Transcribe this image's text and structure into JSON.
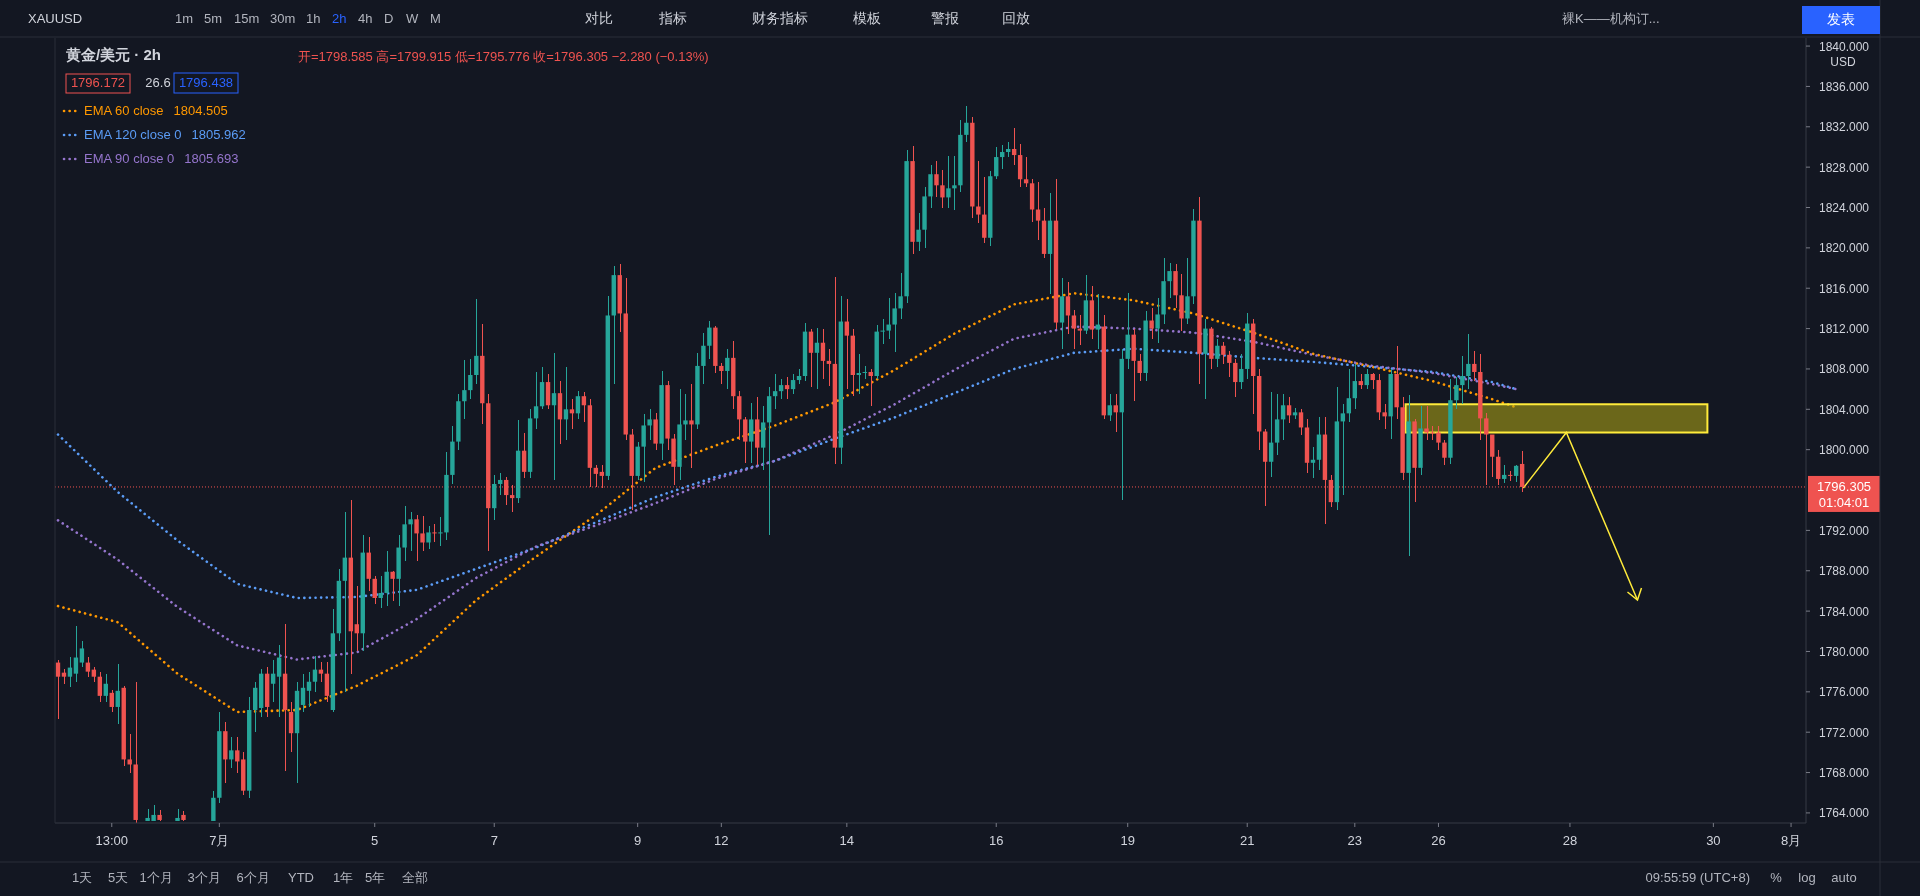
{
  "chart_data": {
    "type": "candlestick",
    "title": "黄金/美元 · 2h",
    "categories": [
      null,
      null,
      null,
      null,
      null,
      null,
      null,
      null,
      null,
      "13:00",
      null,
      null,
      null,
      null,
      null,
      null,
      null,
      null,
      null,
      null,
      null,
      null,
      null,
      null,
      null,
      null,
      null,
      "7月",
      null,
      null,
      null,
      null,
      null,
      null,
      null,
      null,
      null,
      null,
      null,
      null,
      null,
      null,
      null,
      null,
      null,
      null,
      null,
      null,
      null,
      null,
      null,
      null,
      null,
      "5",
      null,
      null,
      null,
      null,
      null,
      null,
      null,
      null,
      null,
      null,
      null,
      null,
      null,
      null,
      null,
      null,
      null,
      null,
      null,
      "7",
      null,
      null,
      null,
      null,
      null,
      null,
      null,
      null,
      null,
      null,
      null,
      null,
      null,
      null,
      null,
      null,
      null,
      null,
      null,
      null,
      null,
      null,
      null,
      "9",
      null,
      null,
      null,
      null,
      null,
      null,
      null,
      null,
      null,
      null,
      null,
      null,
      null,
      "12",
      null,
      null,
      null,
      null,
      null,
      null,
      null,
      null,
      null,
      null,
      null,
      null,
      null,
      null,
      null,
      null,
      null,
      null,
      null,
      null,
      "14",
      null,
      null,
      null,
      null,
      null,
      null,
      null,
      null,
      null,
      null,
      null,
      null,
      null,
      null,
      null,
      null,
      null,
      null,
      null,
      null,
      null,
      null,
      null,
      null,
      "16",
      null,
      null,
      null,
      null,
      null,
      null,
      null,
      null,
      null,
      null,
      null,
      null,
      null,
      null,
      null,
      null,
      null,
      null,
      null,
      null,
      null,
      "19",
      null,
      null,
      null,
      null,
      null,
      null,
      null,
      null,
      null,
      null,
      null,
      null,
      null,
      null,
      null,
      null,
      null,
      null,
      null,
      "21",
      null,
      null,
      null,
      null,
      null,
      null,
      null,
      null,
      null,
      null,
      null,
      null,
      null,
      null,
      null,
      null,
      null,
      "23",
      null,
      null,
      null,
      null,
      null,
      null,
      null,
      null,
      null,
      null,
      null,
      null,
      null,
      "26",
      null,
      null,
      null,
      null,
      null,
      null,
      null,
      null,
      null,
      null,
      null,
      null,
      null,
      null,
      null,
      null,
      null,
      null,
      null,
      null,
      null,
      "28",
      null,
      null,
      null,
      null,
      null,
      null,
      null,
      null,
      null,
      null,
      null,
      null,
      null,
      null,
      null,
      null,
      null,
      null,
      null,
      null,
      null,
      null,
      null,
      "30",
      null,
      null,
      null,
      null,
      null,
      null,
      null,
      null,
      null,
      null,
      null,
      null,
      "8月",
      null,
      null
    ],
    "ohlc": [
      [
        1778.9,
        1779.2,
        1773.3,
        1777.5
      ],
      [
        1777.9,
        1778.3,
        1776.8,
        1777.5
      ],
      [
        1777.5,
        1779.5,
        1776.5,
        1778.4
      ],
      [
        1777.8,
        1782.5,
        1777,
        1779.4
      ],
      [
        1778.9,
        1781,
        1778.5,
        1780.3
      ],
      [
        1778.9,
        1779.5,
        1777.5,
        1778
      ],
      [
        1778.2,
        1778.5,
        1777,
        1777.5
      ],
      [
        1777.5,
        1778,
        1775,
        1775.6
      ],
      [
        1775.6,
        1777.8,
        1775,
        1776.8
      ],
      [
        1775.9,
        1776.2,
        1774,
        1774.5
      ],
      [
        1774.5,
        1778.8,
        1772.8,
        1776.1
      ],
      [
        1776.4,
        1776.6,
        1768.6,
        1769.3
      ],
      [
        1769.3,
        1771.8,
        1768,
        1768.8
      ],
      [
        1768.8,
        1777,
        1763,
        1763.3
      ],
      null,
      [
        1763.2,
        1764.4,
        1763.2,
        1763.5
      ],
      [
        1763.2,
        1764.8,
        1763.2,
        1763.8
      ],
      [
        1763.8,
        1764.3,
        1763.2,
        1763.3
      ],
      null,
      null,
      [
        1763.2,
        1764.4,
        1763.2,
        1763.5
      ],
      [
        1763.8,
        1764.2,
        1763.2,
        1763.3
      ],
      null,
      null,
      null,
      null,
      [
        1763.2,
        1766.2,
        1763.2,
        1765.5
      ],
      [
        1765.5,
        1774,
        1765,
        1772.1
      ],
      [
        1772.1,
        1773,
        1767,
        1769.3
      ],
      [
        1769.3,
        1771.5,
        1768.5,
        1770.2
      ],
      [
        1770.2,
        1771.5,
        1768,
        1769.1
      ],
      [
        1769.3,
        1770,
        1765.8,
        1766.2
      ],
      [
        1766.2,
        1775.5,
        1765.5,
        1774.2
      ],
      [
        1774.2,
        1777,
        1772,
        1776.4
      ],
      [
        1774.4,
        1778.3,
        1773.5,
        1777.8
      ],
      [
        1777.8,
        1778.5,
        1773.5,
        1774.5
      ],
      [
        1776.8,
        1779.2,
        1775,
        1777.8
      ],
      [
        1777.5,
        1780.6,
        1773.5,
        1779.4
      ],
      [
        1777.8,
        1782.7,
        1768.2,
        1774.2
      ],
      [
        1774,
        1775,
        1770,
        1771.9
      ],
      [
        1771.9,
        1777,
        1767,
        1776.1
      ],
      [
        1774.7,
        1777.8,
        1774,
        1776.4
      ],
      [
        1776.1,
        1778,
        1774.5,
        1777
      ],
      [
        1777,
        1779.6,
        1776,
        1778.2
      ],
      [
        1778.2,
        1779,
        1777,
        1777.8
      ],
      [
        1777.8,
        1779,
        1775,
        1775.6
      ],
      [
        1774.2,
        1784.2,
        1774,
        1781.8
      ],
      [
        1781.8,
        1788.2,
        1781,
        1787
      ],
      [
        1787,
        1793.8,
        1776,
        1789.3
      ],
      [
        1789.3,
        1795,
        1777.8,
        1782
      ],
      [
        1782.7,
        1786.5,
        1780,
        1781.8
      ],
      [
        1781.8,
        1791.5,
        1780,
        1789.8
      ],
      [
        1789.8,
        1791.3,
        1786,
        1787.2
      ],
      [
        1787.2,
        1787.5,
        1784.7,
        1785.3
      ],
      [
        1785.3,
        1787.5,
        1784.3,
        1785.8
      ],
      [
        1785.8,
        1790,
        1784.5,
        1787.9
      ],
      [
        1787.9,
        1788,
        1785,
        1787.2
      ],
      [
        1787.2,
        1791.5,
        1784.5,
        1790.3
      ],
      [
        1790.3,
        1794.4,
        1789,
        1792.6
      ],
      [
        1792.6,
        1793.8,
        1790,
        1793.1
      ],
      [
        1793.1,
        1793.5,
        1789,
        1791.7
      ],
      [
        1791.7,
        1793.4,
        1790,
        1790.8
      ],
      [
        1790.8,
        1792.4,
        1790.2,
        1791.8
      ],
      [
        1791.8,
        1792.6,
        1790.8,
        1791.7
      ],
      [
        1791.7,
        1793.3,
        1790.5,
        1791.8
      ],
      [
        1791.8,
        1799.8,
        1791,
        1797.5
      ],
      [
        1797.5,
        1802.3,
        1796.6,
        1800.8
      ],
      [
        1800.8,
        1805.5,
        1800,
        1804.8
      ],
      [
        1804.8,
        1808.9,
        1803,
        1805.9
      ],
      [
        1805.9,
        1809,
        1805,
        1807.4
      ],
      [
        1807.4,
        1814.9,
        1806.5,
        1809.3
      ],
      [
        1809.3,
        1812.5,
        1802.5,
        1804.6
      ],
      [
        1804.6,
        1805.5,
        1790,
        1794.2
      ],
      [
        1794.2,
        1797.5,
        1793,
        1796.6
      ],
      [
        1796.6,
        1797.7,
        1795.5,
        1797
      ],
      [
        1797,
        1797.3,
        1794.5,
        1795.5
      ],
      [
        1795.5,
        1796.5,
        1793.8,
        1795.2
      ],
      [
        1795.2,
        1802.9,
        1794.7,
        1799.9
      ],
      [
        1799.9,
        1801.7,
        1797.2,
        1797.8
      ],
      [
        1797.8,
        1804,
        1797.2,
        1803.1
      ],
      [
        1803.1,
        1807.7,
        1802,
        1804.3
      ],
      [
        1804.3,
        1808.2,
        1804,
        1806.7
      ],
      [
        1806.7,
        1807.5,
        1804,
        1804.4
      ],
      [
        1804.4,
        1809.6,
        1797,
        1805.6
      ],
      [
        1805.6,
        1806.8,
        1800.6,
        1803
      ],
      [
        1803,
        1808.2,
        1801,
        1804
      ],
      [
        1804,
        1805,
        1802,
        1803.6
      ],
      [
        1803.6,
        1805.8,
        1803,
        1805.3
      ],
      [
        1805.3,
        1805.7,
        1802.7,
        1804.4
      ],
      [
        1804.4,
        1805,
        1796.3,
        1798.2
      ],
      [
        1798.2,
        1798.5,
        1796.3,
        1797.6
      ],
      [
        1797.8,
        1798.5,
        1796.2,
        1797.4
      ],
      [
        1797.4,
        1815.2,
        1797,
        1813.3
      ],
      [
        1813.3,
        1818.2,
        1806.5,
        1817.3
      ],
      [
        1817.3,
        1818.4,
        1811.7,
        1813.5
      ],
      [
        1813.5,
        1817,
        1801,
        1801.5
      ],
      [
        1801.5,
        1802,
        1794,
        1797.4
      ],
      [
        1797.4,
        1800.8,
        1797,
        1800.3
      ],
      [
        1800.3,
        1803.5,
        1796.8,
        1802.4
      ],
      [
        1802.4,
        1804,
        1801,
        1803
      ],
      [
        1803,
        1803.6,
        1800,
        1800.6
      ],
      [
        1800.6,
        1807.8,
        1799,
        1806.4
      ],
      [
        1806.4,
        1806.8,
        1800,
        1801.1
      ],
      [
        1801.1,
        1801.6,
        1796.5,
        1798.3
      ],
      [
        1798.3,
        1806,
        1797,
        1802.5
      ],
      [
        1802.5,
        1805.5,
        1801,
        1802.9
      ],
      [
        1802.9,
        1806.5,
        1798.2,
        1802.5
      ],
      [
        1802.5,
        1809.6,
        1802,
        1808.3
      ],
      [
        1808.3,
        1811.6,
        1806.5,
        1810.3
      ],
      [
        1810.3,
        1812.8,
        1809,
        1812.1
      ],
      [
        1812.1,
        1812.3,
        1807.6,
        1808.3
      ],
      [
        1808.3,
        1808.6,
        1806.5,
        1807.8
      ],
      [
        1807.8,
        1810,
        1806,
        1809.1
      ],
      [
        1809.1,
        1810.8,
        1804,
        1805.3
      ],
      [
        1805.3,
        1805.8,
        1801,
        1803
      ],
      [
        1803,
        1803.2,
        1798.7,
        1800.8
      ],
      [
        1800.8,
        1804.6,
        1798.7,
        1803
      ],
      [
        1803,
        1805.2,
        1798.5,
        1800.2
      ],
      [
        1800.2,
        1804.3,
        1798,
        1802.7
      ],
      [
        1802.7,
        1806.2,
        1791.5,
        1805.3
      ],
      [
        1805.3,
        1807.5,
        1804,
        1805.8
      ],
      [
        1805.8,
        1807,
        1805,
        1806.4
      ],
      [
        1806.4,
        1807.2,
        1805,
        1806
      ],
      [
        1806,
        1807.5,
        1805.5,
        1806.9
      ],
      [
        1806.9,
        1808,
        1806.5,
        1807.3
      ],
      [
        1807.3,
        1812.6,
        1806.8,
        1811.7
      ],
      [
        1811.7,
        1812,
        1806.2,
        1809.6
      ],
      [
        1809.6,
        1812.1,
        1806,
        1810.6
      ],
      [
        1810.6,
        1812,
        1807,
        1808.8
      ],
      [
        1808.8,
        1810,
        1806.3,
        1808.5
      ],
      [
        1808.5,
        1817.1,
        1798.6,
        1800.2
      ],
      [
        1800.2,
        1815.2,
        1798.6,
        1812.7
      ],
      [
        1812.7,
        1814.9,
        1806,
        1811.3
      ],
      [
        1811.3,
        1812,
        1805.3,
        1807.4
      ],
      [
        1807.4,
        1809.5,
        1805.5,
        1807.6
      ],
      [
        1807.6,
        1808.3,
        1807,
        1807.7
      ],
      [
        1807.7,
        1808,
        1804.3,
        1807.3
      ],
      [
        1807.3,
        1812.4,
        1807,
        1811.7
      ],
      [
        1811.7,
        1813,
        1810.5,
        1811.8
      ],
      [
        1811.8,
        1815,
        1811,
        1812.4
      ],
      [
        1812.4,
        1815.5,
        1809.7,
        1814
      ],
      [
        1814,
        1817.5,
        1813,
        1815.2
      ],
      [
        1815.2,
        1829.7,
        1814.5,
        1828.6
      ],
      [
        1828.6,
        1830.1,
        1819.4,
        1820.6
      ],
      [
        1820.6,
        1823.5,
        1819.7,
        1821.8
      ],
      [
        1821.8,
        1826,
        1820,
        1825.1
      ],
      [
        1825.1,
        1828.2,
        1824,
        1827.3
      ],
      [
        1827.3,
        1828.6,
        1825,
        1826.2
      ],
      [
        1826.2,
        1827.7,
        1824,
        1825
      ],
      [
        1825,
        1829.1,
        1824,
        1825.9
      ],
      [
        1825.9,
        1829.1,
        1823.8,
        1826.2
      ],
      [
        1826.2,
        1832.7,
        1825.5,
        1831.2
      ],
      [
        1831.2,
        1834.1,
        1830.5,
        1832.4
      ],
      [
        1832.4,
        1833,
        1823,
        1824.1
      ],
      [
        1824.1,
        1828.6,
        1822.5,
        1823.3
      ],
      [
        1823.3,
        1827,
        1820.5,
        1821
      ],
      [
        1821,
        1827.6,
        1820.2,
        1827.1
      ],
      [
        1827.1,
        1830,
        1826.8,
        1829
      ],
      [
        1829,
        1830.2,
        1827.8,
        1829.5
      ],
      [
        1829.5,
        1830.5,
        1829,
        1829.8
      ],
      [
        1829.8,
        1831.9,
        1828.2,
        1829.2
      ],
      [
        1829.2,
        1830.3,
        1826,
        1826.8
      ],
      [
        1826.8,
        1829,
        1826,
        1826.4
      ],
      [
        1826.4,
        1826.8,
        1822.6,
        1823.8
      ],
      [
        1823.8,
        1826.5,
        1820.8,
        1822.7
      ],
      [
        1822.7,
        1824,
        1819,
        1819.4
      ],
      [
        1819.4,
        1825.4,
        1815.4,
        1822.7
      ],
      [
        1822.7,
        1826.8,
        1812,
        1812.6
      ],
      [
        1812.6,
        1817,
        1810,
        1815.2
      ],
      [
        1815.2,
        1816.6,
        1811.5,
        1813.3
      ],
      [
        1813.3,
        1813.8,
        1810,
        1812
      ],
      [
        1812,
        1813.3,
        1810.4,
        1811.8
      ],
      [
        1811.8,
        1817.3,
        1811.5,
        1814.8
      ],
      [
        1814.8,
        1816.2,
        1811,
        1811.9
      ],
      [
        1811.9,
        1815.4,
        1810,
        1812.4
      ],
      [
        1812.2,
        1813.3,
        1803,
        1803.4
      ],
      [
        1803.4,
        1805.5,
        1802.8,
        1804.4
      ],
      [
        1804.4,
        1805.5,
        1801.8,
        1803.7
      ],
      [
        1803.7,
        1810,
        1795,
        1809
      ],
      [
        1809,
        1815.5,
        1808,
        1811.4
      ],
      [
        1811.4,
        1812,
        1804.8,
        1808.8
      ],
      [
        1808.8,
        1809.5,
        1806.8,
        1807.6
      ],
      [
        1807.6,
        1813.7,
        1806.8,
        1812.8
      ],
      [
        1812.8,
        1814,
        1811,
        1812
      ],
      [
        1812,
        1815,
        1810.6,
        1813.4
      ],
      [
        1813.4,
        1819,
        1812.5,
        1816.7
      ],
      [
        1816.7,
        1818.5,
        1815,
        1817.7
      ],
      [
        1817.7,
        1818.4,
        1814,
        1815.3
      ],
      [
        1815.3,
        1817.4,
        1811.8,
        1813
      ],
      [
        1813,
        1819,
        1812.5,
        1815.2
      ],
      [
        1815.2,
        1823.9,
        1814.4,
        1822.7
      ],
      [
        1822.7,
        1825,
        1806.5,
        1809.5
      ],
      [
        1809.5,
        1813,
        1805,
        1812
      ],
      [
        1812,
        1812.2,
        1808,
        1809
      ],
      [
        1809,
        1811,
        1808.2,
        1810.3
      ],
      [
        1810.3,
        1810.7,
        1808.5,
        1809.4
      ],
      [
        1809.4,
        1809.8,
        1807.2,
        1808.6
      ],
      [
        1808.6,
        1809,
        1805.2,
        1806.7
      ],
      [
        1806.7,
        1809.5,
        1806,
        1808
      ],
      [
        1808,
        1813.5,
        1807,
        1812.5
      ],
      [
        1812.5,
        1813,
        1803.5,
        1807.3
      ],
      [
        1807.3,
        1808,
        1800,
        1801.8
      ],
      [
        1801.8,
        1802,
        1794.4,
        1798.8
      ],
      [
        1798.8,
        1805.7,
        1797.3,
        1800.7
      ],
      [
        1800.7,
        1805.5,
        1799.5,
        1803
      ],
      [
        1803,
        1805.5,
        1801,
        1804.4
      ],
      [
        1804.4,
        1805.2,
        1802.6,
        1803.4
      ],
      [
        1803.4,
        1804.1,
        1803,
        1803.7
      ],
      [
        1803.7,
        1804,
        1801.5,
        1802.2
      ],
      [
        1802.2,
        1803,
        1797.7,
        1798.7
      ],
      [
        1798.7,
        1800.3,
        1797.2,
        1799
      ],
      [
        1799,
        1803.2,
        1798,
        1801.5
      ],
      [
        1801.5,
        1803.2,
        1792.6,
        1797
      ],
      [
        1797,
        1797.5,
        1794.3,
        1794.8
      ],
      [
        1794.8,
        1806.2,
        1794,
        1802.8
      ],
      [
        1802.8,
        1804.5,
        1795.5,
        1803.6
      ],
      [
        1803.6,
        1808,
        1802.7,
        1805.1
      ],
      [
        1805.1,
        1808.5,
        1804,
        1806.8
      ],
      [
        1806.8,
        1807.5,
        1806,
        1806.4
      ],
      [
        1806.4,
        1808,
        1806,
        1807.5
      ],
      [
        1807.5,
        1807.6,
        1806,
        1806.9
      ],
      [
        1806.9,
        1807.5,
        1802.9,
        1803.7
      ],
      [
        1803.7,
        1804.5,
        1802,
        1803.3
      ],
      [
        1803.3,
        1808,
        1801.1,
        1807.5
      ],
      [
        1807.5,
        1810.3,
        1803,
        1804.2
      ],
      [
        1804.2,
        1805.2,
        1797,
        1797.7
      ],
      [
        1797.7,
        1805.4,
        1789.5,
        1802.8
      ],
      [
        1802.8,
        1803,
        1794.8,
        1798.2
      ],
      [
        1798.2,
        1804.3,
        1797.5,
        1802.1
      ],
      [
        1802.1,
        1804.3,
        1801,
        1801.7
      ],
      [
        1801.7,
        1802.3,
        1801,
        1801.6
      ],
      [
        1801.7,
        1802.3,
        1800,
        1800.7
      ],
      [
        1800.7,
        1801,
        1798.5,
        1799.2
      ],
      [
        1799.2,
        1807,
        1798.6,
        1804.9
      ],
      [
        1804.9,
        1807.2,
        1804,
        1806.4
      ],
      [
        1806.4,
        1809.3,
        1804.5,
        1807.3
      ],
      [
        1807.3,
        1811.5,
        1806,
        1808.5
      ],
      [
        1808.5,
        1809.8,
        1806.8,
        1807.7
      ],
      [
        1807.7,
        1809.5,
        1801,
        1803.1
      ],
      [
        1803.1,
        1803.6,
        1796.5,
        1801.5
      ],
      [
        1801.5,
        1801.5,
        1797.3,
        1799.3
      ],
      [
        1799.3,
        1800,
        1796.5,
        1797.1
      ],
      [
        1797.1,
        1798.5,
        1796.7,
        1797.5
      ],
      [
        1797.5,
        1797.9,
        1796.9,
        1797.4
      ],
      [
        1797.4,
        1798.5,
        1796.8,
        1798.4
      ],
      [
        1798.585,
        1799.915,
        1795.776,
        1796.305
      ],
      null,
      null,
      null,
      null,
      null,
      null,
      null,
      null,
      null,
      null,
      null,
      null,
      null,
      null,
      null,
      null,
      null,
      null,
      null,
      null,
      null,
      null,
      null,
      null,
      null,
      null,
      null,
      null,
      null,
      null,
      null,
      null,
      null,
      null,
      null,
      null,
      null,
      null,
      null,
      null,
      null,
      null,
      null,
      null,
      null,
      null,
      null
    ],
    "series": [
      {
        "name": "EMA 60 close",
        "type": "line",
        "color": "#ff9800",
        "line_style": "dotted",
        "values": [
          1784.5,
          null,
          null,
          null,
          null,
          null,
          null,
          null,
          null,
          null,
          1782.9,
          null,
          null,
          null,
          null,
          null,
          null,
          null,
          null,
          null,
          1777.8,
          null,
          null,
          null,
          null,
          null,
          null,
          null,
          null,
          null,
          1774,
          null,
          null,
          null,
          null,
          null,
          null,
          null,
          null,
          null,
          1774.2,
          null,
          null,
          null,
          null,
          null,
          null,
          null,
          null,
          null,
          1776.6,
          null,
          null,
          null,
          null,
          null,
          null,
          null,
          null,
          null,
          1779.6,
          null,
          null,
          null,
          null,
          null,
          null,
          null,
          null,
          null,
          1785.1,
          null,
          null,
          null,
          null,
          null,
          null,
          null,
          null,
          null,
          1789.4,
          null,
          null,
          null,
          null,
          null,
          null,
          null,
          null,
          null,
          1793.5,
          null,
          null,
          null,
          null,
          null,
          null,
          null,
          null,
          null,
          1798.2,
          null,
          null,
          null,
          null,
          null,
          null,
          null,
          null,
          null,
          1800.4,
          null,
          null,
          null,
          null,
          null,
          null,
          null,
          null,
          null,
          1802.4,
          null,
          null,
          null,
          null,
          null,
          null,
          null,
          null,
          null,
          1804.7,
          null,
          null,
          null,
          null,
          null,
          null,
          null,
          null,
          null,
          1807.9,
          null,
          null,
          null,
          null,
          null,
          null,
          null,
          null,
          null,
          1811.5,
          null,
          null,
          null,
          null,
          null,
          null,
          null,
          null,
          null,
          1814.4,
          null,
          null,
          null,
          null,
          null,
          null,
          null,
          null,
          null,
          1815.5,
          null,
          null,
          null,
          null,
          null,
          null,
          null,
          null,
          null,
          1814.8,
          null,
          null,
          null,
          null,
          null,
          null,
          null,
          null,
          null,
          1813.5,
          null,
          null,
          null,
          null,
          null,
          null,
          null,
          null,
          null,
          1811.6,
          null,
          null,
          null,
          null,
          null,
          null,
          null,
          null,
          null,
          1809.5,
          null,
          null,
          null,
          null,
          null,
          null,
          null,
          null,
          null,
          1808.2,
          null,
          null,
          null,
          null,
          null,
          null,
          null,
          null,
          null,
          1806.8,
          null,
          null,
          null,
          null,
          null,
          null,
          null,
          null,
          null,
          1805,
          null,
          null,
          null,
          1804.2,
          null,
          null,
          null,
          null,
          null,
          null,
          null,
          null,
          null,
          null,
          null,
          null,
          null,
          null,
          null,
          null,
          null,
          null,
          null,
          null,
          null,
          null,
          null,
          null,
          null,
          null,
          null,
          null,
          null,
          null,
          null,
          null,
          null,
          null,
          null,
          null,
          null,
          null,
          null,
          null,
          null,
          null,
          null,
          null,
          null,
          null,
          null,
          null
        ]
      },
      {
        "name": "EMA 120 close 0",
        "type": "line",
        "color": "#5b9cf6",
        "line_style": "dotted",
        "values": [
          1801.5,
          null,
          null,
          null,
          null,
          null,
          null,
          null,
          null,
          null,
          1795.8,
          null,
          null,
          null,
          null,
          null,
          null,
          null,
          null,
          null,
          1791,
          null,
          null,
          null,
          null,
          null,
          null,
          null,
          null,
          null,
          1786.7,
          null,
          null,
          null,
          null,
          null,
          null,
          null,
          null,
          null,
          1785.3,
          null,
          null,
          null,
          null,
          null,
          null,
          null,
          null,
          null,
          1785.4,
          null,
          null,
          null,
          null,
          null,
          null,
          null,
          null,
          null,
          1786.1,
          null,
          null,
          null,
          null,
          null,
          null,
          null,
          null,
          null,
          1788.2,
          null,
          null,
          null,
          null,
          null,
          null,
          null,
          null,
          null,
          1790.3,
          null,
          null,
          null,
          null,
          null,
          null,
          null,
          null,
          null,
          1792.8,
          null,
          null,
          null,
          null,
          null,
          null,
          null,
          null,
          null,
          1795.3,
          null,
          null,
          null,
          null,
          null,
          null,
          null,
          null,
          null,
          1797.3,
          null,
          null,
          null,
          null,
          null,
          null,
          null,
          null,
          null,
          1798.9,
          null,
          null,
          null,
          null,
          null,
          null,
          null,
          null,
          null,
          1801.1,
          null,
          null,
          null,
          null,
          null,
          null,
          null,
          null,
          null,
          1803.2,
          null,
          null,
          null,
          null,
          null,
          null,
          null,
          null,
          null,
          1805.6,
          null,
          null,
          null,
          null,
          null,
          null,
          null,
          null,
          null,
          1808,
          null,
          null,
          null,
          null,
          null,
          null,
          null,
          null,
          null,
          1809.6,
          null,
          null,
          null,
          null,
          null,
          null,
          null,
          null,
          null,
          1810,
          null,
          null,
          null,
          null,
          null,
          null,
          null,
          null,
          null,
          1809.6,
          null,
          null,
          null,
          null,
          null,
          null,
          null,
          null,
          null,
          1809.1,
          null,
          null,
          null,
          null,
          null,
          null,
          null,
          null,
          null,
          1808.7,
          null,
          null,
          null,
          null,
          null,
          null,
          null,
          null,
          null,
          1808.2,
          null,
          null,
          null,
          null,
          null,
          null,
          null,
          null,
          null,
          1807.7,
          null,
          null,
          null,
          null,
          null,
          null,
          null,
          null,
          null,
          1806.7,
          null,
          null,
          null,
          1806,
          null,
          null,
          null,
          null,
          null,
          null,
          null,
          null,
          null,
          null,
          null,
          null,
          null,
          null,
          null,
          null,
          null,
          null,
          null,
          null,
          null,
          null,
          null,
          null,
          null,
          null,
          null,
          null,
          null,
          null,
          null,
          null,
          null,
          null,
          null,
          null,
          null,
          null,
          null,
          null,
          null,
          null,
          null,
          null,
          null,
          null,
          null,
          null
        ]
      },
      {
        "name": "EMA 90 close 0",
        "type": "line",
        "color": "#9575cd",
        "line_style": "dotted",
        "values": [
          1793,
          null,
          null,
          null,
          null,
          null,
          null,
          null,
          null,
          null,
          1789.1,
          null,
          null,
          null,
          null,
          null,
          null,
          null,
          null,
          null,
          1784.4,
          null,
          null,
          null,
          null,
          null,
          null,
          null,
          null,
          null,
          1780.6,
          null,
          null,
          null,
          null,
          null,
          null,
          null,
          null,
          null,
          1779.2,
          null,
          null,
          null,
          null,
          null,
          null,
          null,
          null,
          null,
          1779.9,
          null,
          null,
          null,
          null,
          null,
          null,
          null,
          null,
          null,
          1783.2,
          null,
          null,
          null,
          null,
          null,
          null,
          null,
          null,
          null,
          1787.3,
          null,
          null,
          null,
          null,
          null,
          null,
          null,
          null,
          null,
          1790.4,
          null,
          null,
          null,
          null,
          null,
          null,
          null,
          null,
          null,
          1792.5,
          null,
          null,
          null,
          null,
          null,
          null,
          null,
          null,
          null,
          1794.7,
          null,
          null,
          null,
          null,
          null,
          null,
          null,
          null,
          null,
          1797.1,
          null,
          null,
          null,
          null,
          null,
          null,
          null,
          null,
          null,
          1798.9,
          null,
          null,
          null,
          null,
          null,
          null,
          null,
          null,
          null,
          1801.5,
          null,
          null,
          null,
          null,
          null,
          null,
          null,
          null,
          null,
          1804.5,
          null,
          null,
          null,
          null,
          null,
          null,
          null,
          null,
          null,
          1807.9,
          null,
          null,
          null,
          null,
          null,
          null,
          null,
          null,
          null,
          1811,
          null,
          null,
          null,
          null,
          null,
          null,
          null,
          null,
          null,
          1812.2,
          null,
          null,
          null,
          null,
          null,
          null,
          null,
          null,
          null,
          1812,
          null,
          null,
          null,
          null,
          null,
          null,
          null,
          null,
          null,
          1811.6,
          null,
          null,
          null,
          null,
          null,
          null,
          null,
          null,
          null,
          1810.7,
          null,
          null,
          null,
          null,
          null,
          null,
          null,
          null,
          null,
          1809.4,
          null,
          null,
          null,
          null,
          null,
          null,
          null,
          null,
          null,
          1808.3,
          null,
          null,
          null,
          null,
          null,
          null,
          null,
          null,
          null,
          1807.6,
          null,
          null,
          null,
          null,
          null,
          null,
          null,
          null,
          null,
          1806.5,
          null,
          null,
          null,
          1806,
          null,
          null,
          null,
          null,
          null,
          null,
          null,
          null,
          null,
          null,
          null,
          null,
          null,
          null,
          null,
          null,
          null,
          null,
          null,
          null,
          null,
          null,
          null,
          null,
          null,
          null,
          null,
          null,
          null,
          null,
          null,
          null,
          null,
          null,
          null,
          null,
          null,
          null,
          null,
          null,
          null,
          null,
          null,
          null,
          null,
          null,
          null,
          null
        ]
      }
    ],
    "ylim": [
      1763,
      1840.8
    ],
    "yticks": [
      {
        "value": 1764,
        "label": "1764.000"
      },
      {
        "value": 1768,
        "label": "1768.000"
      },
      {
        "value": 1772,
        "label": "1772.000"
      },
      {
        "value": 1776,
        "label": "1776.000"
      },
      {
        "value": 1780,
        "label": "1780.000"
      },
      {
        "value": 1784,
        "label": "1784.000"
      },
      {
        "value": 1788,
        "label": "1788.000"
      },
      {
        "value": 1792,
        "label": "1792.000"
      },
      {
        "value": 1800,
        "label": "1800.000"
      },
      {
        "value": 1804,
        "label": "1804.000"
      },
      {
        "value": 1808,
        "label": "1808.000"
      },
      {
        "value": 1812,
        "label": "1812.000"
      },
      {
        "value": 1816,
        "label": "1816.000"
      },
      {
        "value": 1820,
        "label": "1820.000"
      },
      {
        "value": 1824,
        "label": "1824.000"
      },
      {
        "value": 1828,
        "label": "1828.000"
      },
      {
        "value": 1832,
        "label": "1832.000"
      },
      {
        "value": 1836,
        "label": "1836.000"
      },
      {
        "value": 1840,
        "label": "1840.000"
      }
    ],
    "ref_lines": [
      {
        "axis": "y",
        "value": 1796.305,
        "label": "1796.305",
        "color": "#ef5350",
        "line_style": "dotted"
      }
    ],
    "legend": "top left",
    "annotations": [
      "XAUUSD",
      "1m",
      "5m",
      "15m",
      "30m",
      "1h",
      "2h",
      "4h",
      "D",
      "W",
      "M",
      "对比",
      "指标",
      "财务指标",
      "模板",
      "警报",
      "回放",
      "裸K——机构订...",
      "发表",
      "开=1798.585 高=1799.915 低=1795.776 收=1796.305 −2.280 (−0.13%)",
      "1796.172",
      "26.6",
      "1796.438",
      "1804.505",
      "1805.962",
      "1805.693",
      "USD",
      "01:04:01",
      "1天",
      "5天",
      "1个月",
      "3个月",
      "6个月",
      "YTD",
      "1年",
      "5年",
      "全部",
      "09:55:59 (UTC+8)",
      "%",
      "log",
      "auto"
    ]
  }
}
